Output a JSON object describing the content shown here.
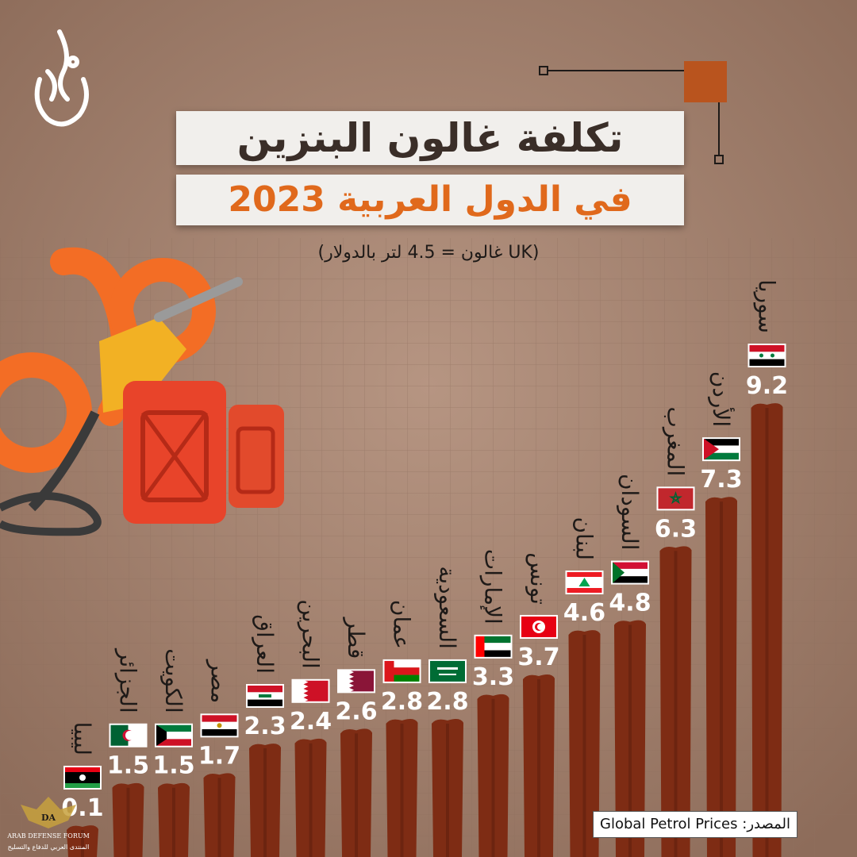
{
  "header": {
    "title_line1": "تكلفة غالون البنزين",
    "title_line2": "في الدول العربية 2023",
    "subtitle": "(UK غالون = 4.5 لتر بالدولار)"
  },
  "source": {
    "label": "المصدر:",
    "value": "Global Petrol Prices"
  },
  "watermark": {
    "text_en": "ARAB DEFENSE FORUM",
    "text_ar": "المنتدى العربي للدفاع والتسليح",
    "initials": "DA"
  },
  "logo": {
    "text": "الجزيرة"
  },
  "colors": {
    "background": "#a58470",
    "bar": "#7e2c14",
    "bar_dark": "#5a1c0c",
    "title_accent": "#e0691c",
    "orange_graphic": "#f36d25",
    "canister": "#e8442a"
  },
  "chart_data": {
    "type": "bar",
    "title": "تكلفة غالون البنزين في الدول العربية 2023",
    "xlabel": "",
    "ylabel": "",
    "ylim": [
      0,
      10
    ],
    "categories": [
      "ليبيا",
      "الجزائر",
      "الكويت",
      "مصر",
      "العراق",
      "البحرين",
      "قطر",
      "عمان",
      "السعودية",
      "الإمارات",
      "تونس",
      "لبنان",
      "السودان",
      "المغرب",
      "الأردن",
      "سوريا"
    ],
    "values": [
      0.1,
      1.5,
      1.5,
      1.7,
      2.3,
      2.4,
      2.6,
      2.8,
      2.8,
      3.3,
      3.7,
      4.6,
      4.8,
      6.3,
      7.3,
      9.2
    ],
    "flags": [
      "libya-flag",
      "algeria-flag",
      "kuwait-flag",
      "egypt-flag",
      "iraq-flag",
      "bahrain-flag",
      "qatar-flag",
      "oman-flag",
      "saudi-arabia-flag",
      "uae-flag",
      "tunisia-flag",
      "lebanon-flag",
      "sudan-flag",
      "morocco-flag",
      "jordan-flag",
      "syria-flag"
    ],
    "grid": true,
    "legend": "none"
  }
}
